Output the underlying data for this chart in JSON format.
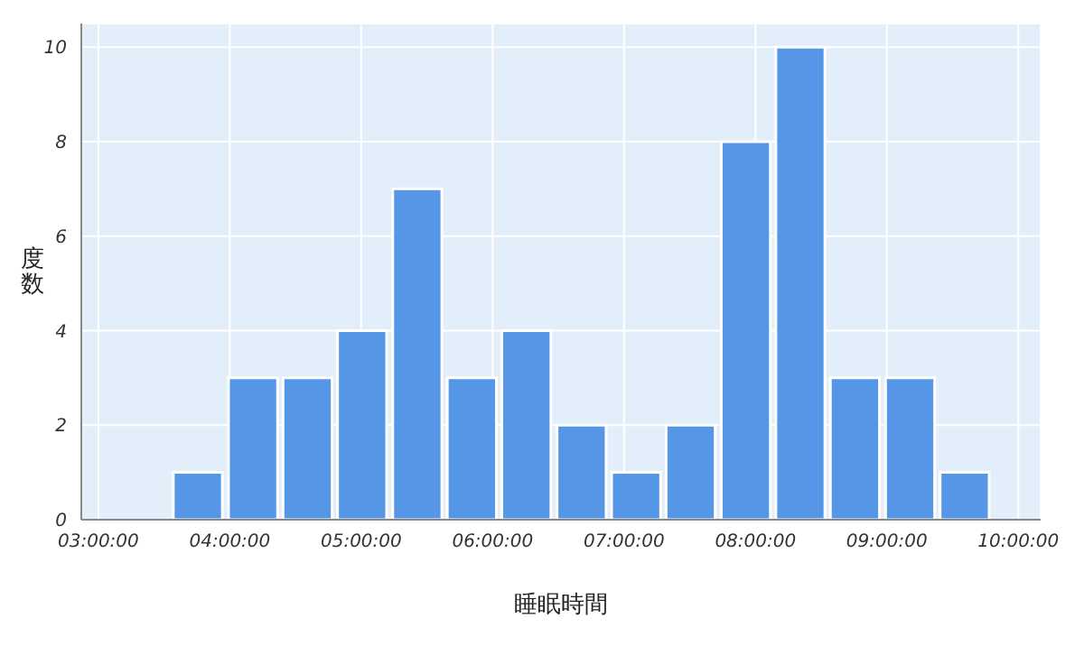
{
  "chart_data": {
    "type": "histogram",
    "xlabel": "睡眠時間",
    "ylabel": "度数",
    "bins": [
      3.54,
      3.96,
      4.38,
      4.79,
      5.21,
      5.63,
      6.04,
      6.46,
      6.88,
      7.29,
      7.71,
      8.13,
      8.54,
      8.96,
      9.38,
      9.79
    ],
    "values": [
      1,
      3,
      3,
      4,
      7,
      3,
      4,
      2,
      1,
      2,
      8,
      10,
      3,
      3,
      1
    ],
    "color": "#5596e6",
    "xlim": [
      2.87,
      10.17
    ],
    "xticks": [
      {
        "value": 3,
        "label": "03:00:00"
      },
      {
        "value": 4,
        "label": "04:00:00"
      },
      {
        "value": 5,
        "label": "05:00:00"
      },
      {
        "value": 6,
        "label": "06:00:00"
      },
      {
        "value": 7,
        "label": "07:00:00"
      },
      {
        "value": 8,
        "label": "08:00:00"
      },
      {
        "value": 9,
        "label": "09:00:00"
      },
      {
        "value": 10,
        "label": "10:00:00"
      }
    ],
    "ylim": [
      0,
      10.5
    ],
    "yticks": [
      0,
      2,
      4,
      6,
      8,
      10
    ],
    "grid": true
  }
}
